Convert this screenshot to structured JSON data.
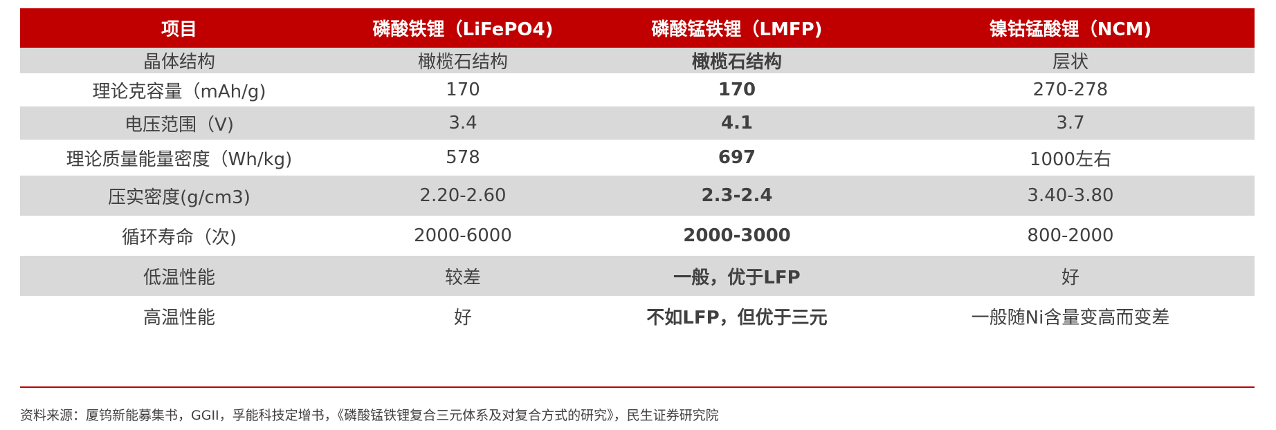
{
  "header": [
    "项目",
    "磷酸铁锂（LiFePO4)",
    "磷酸锰铁锂（LMFP)",
    "镍钴锰酸锂（NCM)"
  ],
  "rows": [
    [
      "晶体结构",
      "橄榄石结构",
      "橄榄石结构",
      "层状"
    ],
    [
      "理论克容量（mAh/g)",
      "170",
      "170",
      "270-278"
    ],
    [
      "电压范围（V)",
      "3.4",
      "4.1",
      "3.7"
    ],
    [
      "理论质量能量密度（Wh/kg)",
      "578",
      "697",
      "1000左右"
    ],
    [
      "压实密度(g/cm3)",
      "2.20-2.60",
      "2.3-2.4",
      "3.40-3.80"
    ],
    [
      "循环寿命（次)",
      "2000-6000",
      "2000-3000",
      "800-2000"
    ],
    [
      "低温性能",
      "较差",
      "一般，优于LFP",
      "好"
    ],
    [
      "高温性能",
      "好",
      "不如LFP，但优于三元",
      "一般随Ni含量变高而变差"
    ]
  ],
  "source": "资料来源：厦钨新能募集书，GGII，孚能科技定增书，《磷酸锰铁锂复合三元体系及对复合方式的研究》，民生证券研究院",
  "colors": {
    "header_bg": "#c00000",
    "stripe": "#d9d9d9",
    "text": "#404040"
  }
}
